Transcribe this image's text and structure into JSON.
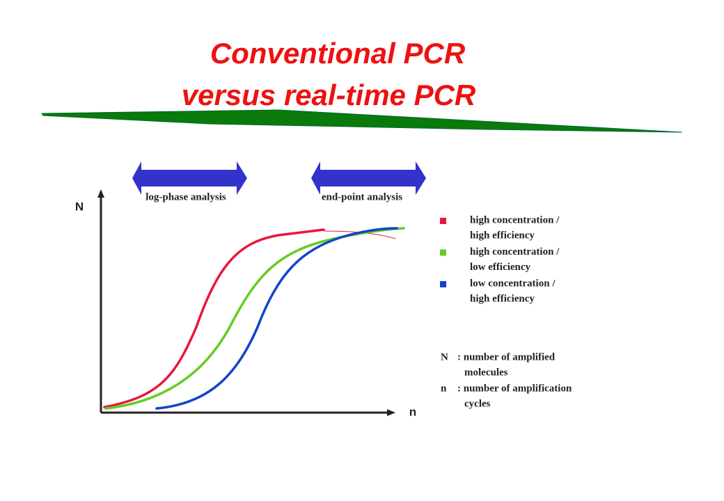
{
  "title": [
    "Conventional PCR",
    "versus real-time PCR"
  ],
  "arrows": [
    "log-phase analysis",
    "end-point analysis"
  ],
  "axes": {
    "y": "N",
    "x": "n"
  },
  "legend": [
    {
      "lines": [
        "high concentration /",
        "high efficiency"
      ],
      "color": "#e8173c"
    },
    {
      "lines": [
        "high concentration /",
        "low efficiency"
      ],
      "color": "#66cc22"
    },
    {
      "lines": [
        "low concentration /",
        "high efficiency"
      ],
      "color": "#1144cc"
    }
  ],
  "definitions": [
    {
      "symbol": "N",
      "lines": [
        ": number of amplified",
        "molecules"
      ]
    },
    {
      "symbol": "n",
      "lines": [
        ": number of amplification",
        "cycles"
      ]
    }
  ]
}
